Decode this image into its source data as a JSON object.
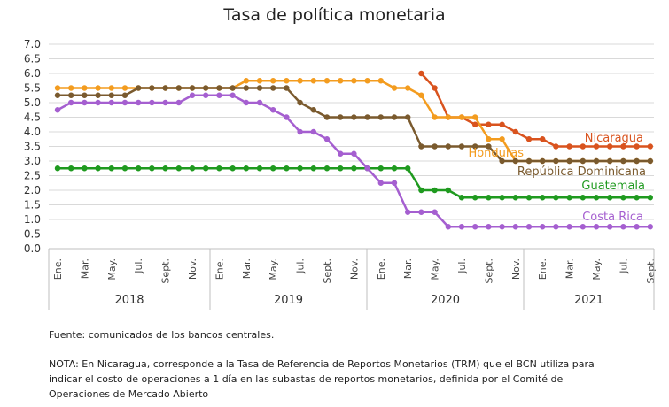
{
  "title": "Tasa de política monetaria",
  "source": "Fuente: comunicados de los bancos centrales.",
  "note": "NOTA: En Nicaragua, corresponde a la Tasa de Referencia de Reportos Monetarios (TRM) que el BCN utiliza para indicar el costo de operaciones a 1 día en las subastas de reportos monetarios, definida por el Comité de Operaciones de Mercado Abierto",
  "chart_data": {
    "type": "line",
    "title": "Tasa de política monetaria",
    "ylim": [
      0,
      7
    ],
    "yticks": [
      "0.0",
      "0.5",
      "1.0",
      "1.5",
      "2.0",
      "2.5",
      "3.0",
      "3.5",
      "4.0",
      "4.5",
      "5.0",
      "5.5",
      "6.0",
      "6.5",
      "7.0"
    ],
    "grid": true,
    "month_tick_labels": [
      "Ene.",
      "Mar.",
      "May.",
      "Jul.",
      "Sept.",
      "Nov.",
      "Ene.",
      "Mar.",
      "May.",
      "Jul.",
      "Sept.",
      "Nov.",
      "Ene.",
      "Mar.",
      "May.",
      "Jul.",
      "Sept.",
      "Nov.",
      "Ene.",
      "Mar.",
      "May.",
      "Jul.",
      "Sept."
    ],
    "years": [
      "2018",
      "2019",
      "2020",
      "2021"
    ],
    "period": "2018-01 to 2021-09 (monthly)",
    "series": [
      {
        "name": "Nicaragua",
        "color": "#d9531e",
        "start": "2020-04",
        "values": [
          6.0,
          5.5,
          4.5,
          4.5,
          4.25,
          4.25,
          4.25,
          4.0,
          3.75,
          3.75,
          3.5,
          3.5,
          3.5,
          3.5,
          3.5,
          3.5,
          3.5,
          3.5
        ]
      },
      {
        "name": "Honduras",
        "color": "#f39c1f",
        "start": "2018-01",
        "values": [
          5.5,
          5.5,
          5.5,
          5.5,
          5.5,
          5.5,
          5.5,
          5.5,
          5.5,
          5.5,
          5.5,
          5.5,
          5.5,
          5.5,
          5.75,
          5.75,
          5.75,
          5.75,
          5.75,
          5.75,
          5.75,
          5.75,
          5.75,
          5.75,
          5.75,
          5.5,
          5.5,
          5.25,
          4.5,
          4.5,
          4.5,
          4.5,
          3.75,
          3.75,
          3.0,
          3.0,
          3.0,
          3.0,
          3.0,
          3.0,
          3.0,
          3.0,
          3.0,
          3.0,
          3.0
        ]
      },
      {
        "name": "República Dominicana",
        "color": "#7a5a2e",
        "start": "2018-01",
        "values": [
          5.25,
          5.25,
          5.25,
          5.25,
          5.25,
          5.25,
          5.5,
          5.5,
          5.5,
          5.5,
          5.5,
          5.5,
          5.5,
          5.5,
          5.5,
          5.5,
          5.5,
          5.5,
          5.0,
          4.75,
          4.5,
          4.5,
          4.5,
          4.5,
          4.5,
          4.5,
          4.5,
          3.5,
          3.5,
          3.5,
          3.5,
          3.5,
          3.5,
          3.0,
          3.0,
          3.0,
          3.0,
          3.0,
          3.0,
          3.0,
          3.0,
          3.0,
          3.0,
          3.0,
          3.0
        ]
      },
      {
        "name": "Guatemala",
        "color": "#1f9a1f",
        "start": "2018-01",
        "values": [
          2.75,
          2.75,
          2.75,
          2.75,
          2.75,
          2.75,
          2.75,
          2.75,
          2.75,
          2.75,
          2.75,
          2.75,
          2.75,
          2.75,
          2.75,
          2.75,
          2.75,
          2.75,
          2.75,
          2.75,
          2.75,
          2.75,
          2.75,
          2.75,
          2.75,
          2.75,
          2.75,
          2.0,
          2.0,
          2.0,
          1.75,
          1.75,
          1.75,
          1.75,
          1.75,
          1.75,
          1.75,
          1.75,
          1.75,
          1.75,
          1.75,
          1.75,
          1.75,
          1.75,
          1.75
        ]
      },
      {
        "name": "Costa Rica",
        "color": "#a55fd0",
        "start": "2018-01",
        "values": [
          4.75,
          5.0,
          5.0,
          5.0,
          5.0,
          5.0,
          5.0,
          5.0,
          5.0,
          5.0,
          5.25,
          5.25,
          5.25,
          5.25,
          5.0,
          5.0,
          4.75,
          4.5,
          4.0,
          4.0,
          3.75,
          3.25,
          3.25,
          2.75,
          2.25,
          2.25,
          1.25,
          1.25,
          1.25,
          0.75,
          0.75,
          0.75,
          0.75,
          0.75,
          0.75,
          0.75,
          0.75,
          0.75,
          0.75,
          0.75,
          0.75,
          0.75,
          0.75,
          0.75,
          0.75
        ]
      }
    ]
  }
}
